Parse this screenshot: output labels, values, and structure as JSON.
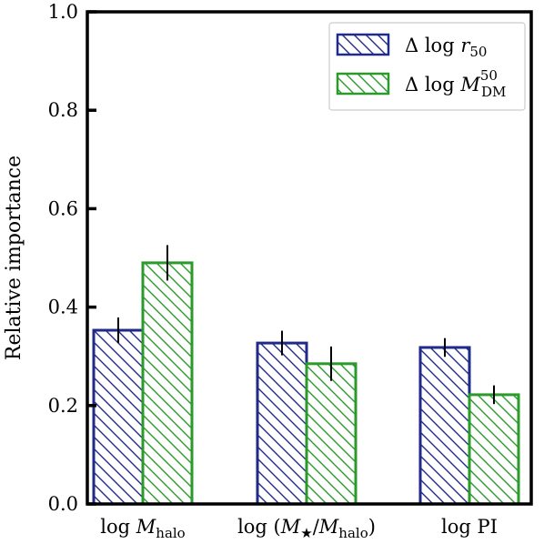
{
  "chart_data": {
    "type": "bar",
    "categories": [
      "log M_halo",
      "log (M★/M_halo)",
      "log PI"
    ],
    "category_labels": [
      {
        "pre": "log ",
        "main": "M",
        "sub": "halo",
        "post": ""
      },
      {
        "pre": "log (",
        "main": "M",
        "sub": "★",
        "mid": "/",
        "main2": "M",
        "sub2": "halo",
        "post": ")"
      },
      {
        "pre": "log PI",
        "main": "",
        "sub": "",
        "post": ""
      }
    ],
    "series": [
      {
        "name": "Δ log r_50",
        "legend": {
          "pre": "Δ log ",
          "main": "r",
          "sub": "50",
          "sup": ""
        },
        "values": [
          0.353,
          0.327,
          0.318
        ],
        "errors": [
          0.026,
          0.025,
          0.019
        ],
        "color": "#1f2a8a",
        "hatch": "backslash"
      },
      {
        "name": "Δ log M_DM^50",
        "legend": {
          "pre": "Δ log ",
          "main": "M",
          "sub": "DM",
          "sup": "50"
        },
        "values": [
          0.49,
          0.285,
          0.222
        ],
        "errors": [
          0.036,
          0.035,
          0.019
        ],
        "color": "#2a9a2a",
        "hatch": "backslash"
      }
    ],
    "ylabel": "Relative importance",
    "xlabel": "",
    "title": "",
    "ylim": [
      0.0,
      1.0
    ],
    "yticks": [
      "0.0",
      "0.2",
      "0.4",
      "0.6",
      "0.8",
      "1.0"
    ],
    "grid": false,
    "legend_position": "top-right"
  }
}
